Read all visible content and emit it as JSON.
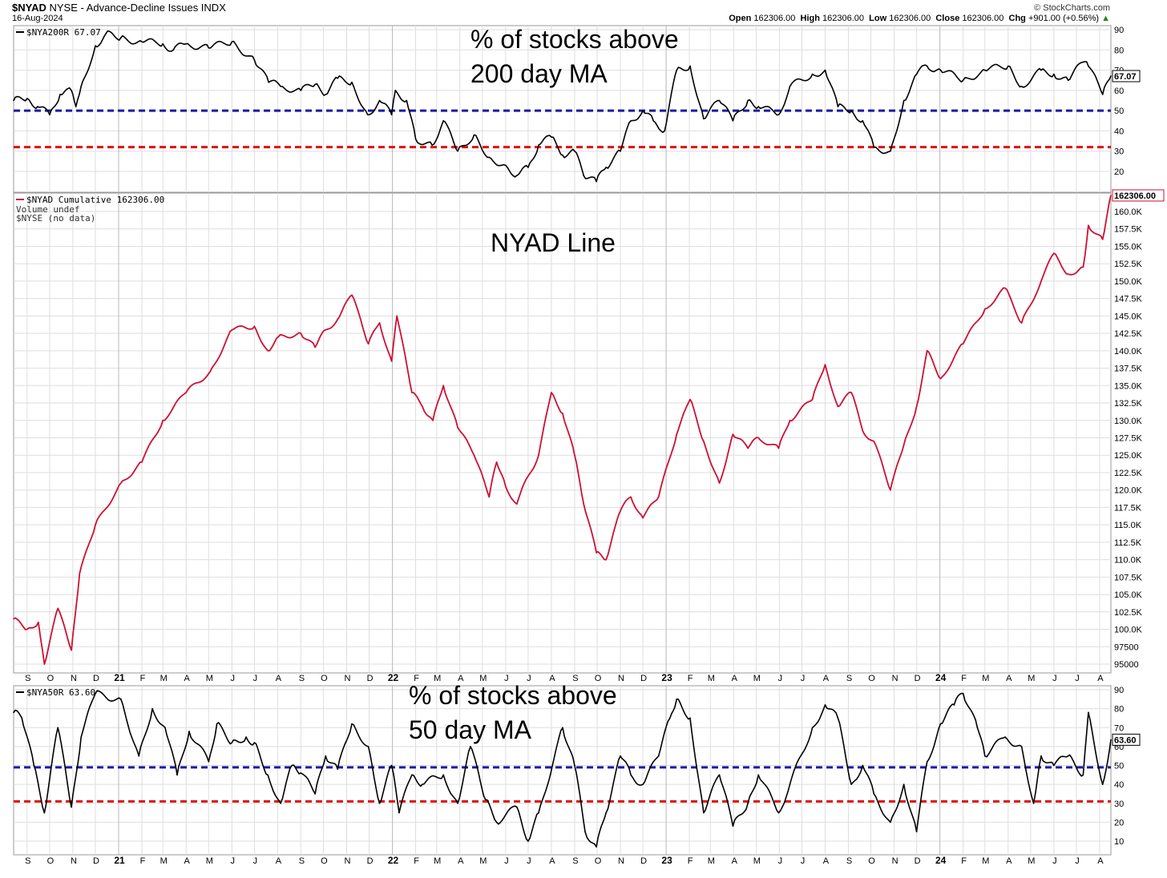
{
  "header": {
    "symbol": "$NYAD",
    "description": "NYSE - Advance-Decline Issues INDX",
    "date": "16-Aug-2024",
    "source": "© StockCharts.com",
    "ohlc": [
      {
        "label": "Open",
        "value": "162306.00"
      },
      {
        "label": "High",
        "value": "162306.00"
      },
      {
        "label": "Low",
        "value": "162306.00"
      },
      {
        "label": "Close",
        "value": "162306.00"
      },
      {
        "label": "Chg",
        "value": "+901.00 (+0.56%)"
      }
    ],
    "chg_arrow": "▲"
  },
  "colors": {
    "black_line": "#000000",
    "red_line": "#cc1133",
    "blue_dash": "#1a1aa6",
    "red_dash": "#e01010",
    "grid": "#dedede"
  },
  "x_tick_labels": [
    "S",
    "O",
    "N",
    "D",
    "21",
    "F",
    "M",
    "A",
    "M",
    "J",
    "J",
    "A",
    "S",
    "O",
    "N",
    "D",
    "22",
    "F",
    "M",
    "A",
    "M",
    "J",
    "J",
    "A",
    "S",
    "O",
    "N",
    "D",
    "23",
    "F",
    "M",
    "A",
    "M",
    "J",
    "J",
    "A",
    "S",
    "O",
    "N",
    "D",
    "24",
    "F",
    "M",
    "A",
    "M",
    "J",
    "J",
    "A"
  ],
  "chart_data": [
    {
      "type": "line",
      "id": "top",
      "legend": "$NYA200R 67.07",
      "annotation_lines": [
        "% of stocks above",
        "200 day MA"
      ],
      "last_value_label": "67.07",
      "y_ticks": [
        "20",
        "30",
        "40",
        "50",
        "60",
        "70",
        "80",
        "90"
      ],
      "ylim": [
        12,
        92
      ],
      "reference_lines": [
        {
          "value": 50,
          "color": "blue"
        },
        {
          "value": 32,
          "color": "red"
        }
      ],
      "x": [
        "2020-08-14",
        "2020-09-01",
        "2020-09-15",
        "2020-10-01",
        "2020-10-15",
        "2020-10-30",
        "2020-11-05",
        "2020-11-12",
        "2020-12-01",
        "2020-12-15",
        "2021-01-04",
        "2021-02-01",
        "2021-03-01",
        "2021-03-15",
        "2021-04-01",
        "2021-05-01",
        "2021-06-01",
        "2021-07-01",
        "2021-07-20",
        "2021-08-05",
        "2021-09-01",
        "2021-09-20",
        "2021-10-04",
        "2021-10-20",
        "2021-11-08",
        "2021-11-29",
        "2021-12-15",
        "2021-12-31",
        "2022-01-05",
        "2022-01-20",
        "2022-02-01",
        "2022-02-23",
        "2022-03-10",
        "2022-03-29",
        "2022-04-20",
        "2022-05-10",
        "2022-06-01",
        "2022-06-16",
        "2022-07-01",
        "2022-07-15",
        "2022-08-01",
        "2022-08-16",
        "2022-09-01",
        "2022-09-13",
        "2022-09-30",
        "2022-10-13",
        "2022-11-01",
        "2022-11-15",
        "2022-12-01",
        "2022-12-15",
        "2022-12-30",
        "2023-01-15",
        "2023-02-02",
        "2023-02-20",
        "2023-03-13",
        "2023-03-31",
        "2023-04-20",
        "2023-05-04",
        "2023-05-31",
        "2023-06-15",
        "2023-07-15",
        "2023-08-01",
        "2023-08-18",
        "2023-09-05",
        "2023-09-20",
        "2023-10-05",
        "2023-10-27",
        "2023-11-14",
        "2023-12-01",
        "2023-12-15",
        "2024-01-02",
        "2024-02-01",
        "2024-03-01",
        "2024-04-01",
        "2024-04-19",
        "2024-05-15",
        "2024-06-01",
        "2024-06-20",
        "2024-07-10",
        "2024-07-17",
        "2024-08-05",
        "2024-08-16"
      ],
      "values": [
        55,
        56,
        52,
        48,
        58,
        60,
        52,
        62,
        82,
        88,
        86,
        84,
        83,
        80,
        83,
        81,
        84,
        75,
        64,
        62,
        60,
        63,
        58,
        66,
        64,
        48,
        55,
        48,
        60,
        55,
        36,
        33,
        45,
        30,
        38,
        27,
        23,
        18,
        22,
        33,
        37,
        28,
        30,
        18,
        15,
        22,
        30,
        45,
        50,
        45,
        40,
        70,
        72,
        46,
        55,
        45,
        55,
        52,
        48,
        62,
        68,
        70,
        52,
        50,
        45,
        32,
        30,
        55,
        68,
        72,
        70,
        65,
        70,
        72,
        62,
        70,
        68,
        65,
        74,
        72,
        58,
        67.07
      ]
    },
    {
      "type": "line",
      "id": "middle",
      "legend": "$NYAD Cumulative 162306.00",
      "legend_lines": [
        "Volume undef",
        "$NYSE (no data)"
      ],
      "annotation": "NYAD Line",
      "last_value_label": "162306.00",
      "y_ticks": [
        "95000",
        "97500",
        "100.0K",
        "102.5K",
        "105.0K",
        "107.5K",
        "110.0K",
        "112.5K",
        "115.0K",
        "117.5K",
        "120.0K",
        "122.5K",
        "125.0K",
        "127.5K",
        "130.0K",
        "132.5K",
        "135.0K",
        "137.5K",
        "140.0K",
        "142.5K",
        "145.0K",
        "147.5K",
        "150.0K",
        "152.5K",
        "155.0K",
        "157.5K",
        "160.0K"
      ],
      "ylim": [
        94500,
        163200
      ],
      "x": [
        "2020-08-14",
        "2020-09-01",
        "2020-09-16",
        "2020-09-24",
        "2020-10-12",
        "2020-10-30",
        "2020-11-10",
        "2020-12-01",
        "2021-01-04",
        "2021-02-01",
        "2021-03-01",
        "2021-04-01",
        "2021-05-03",
        "2021-06-01",
        "2021-07-01",
        "2021-07-19",
        "2021-08-02",
        "2021-09-01",
        "2021-09-20",
        "2021-10-04",
        "2021-10-20",
        "2021-11-08",
        "2021-11-30",
        "2021-12-15",
        "2021-12-31",
        "2022-01-07",
        "2022-01-27",
        "2022-02-10",
        "2022-02-24",
        "2022-03-10",
        "2022-03-29",
        "2022-04-20",
        "2022-05-10",
        "2022-05-20",
        "2022-06-01",
        "2022-06-16",
        "2022-07-01",
        "2022-07-15",
        "2022-08-01",
        "2022-08-16",
        "2022-09-01",
        "2022-09-13",
        "2022-09-30",
        "2022-10-13",
        "2022-11-01",
        "2022-11-15",
        "2022-12-01",
        "2022-12-22",
        "2023-01-15",
        "2023-02-02",
        "2023-02-20",
        "2023-03-13",
        "2023-03-31",
        "2023-04-20",
        "2023-05-04",
        "2023-05-31",
        "2023-06-15",
        "2023-07-15",
        "2023-08-01",
        "2023-08-18",
        "2023-09-05",
        "2023-09-20",
        "2023-10-05",
        "2023-10-27",
        "2023-11-14",
        "2023-12-01",
        "2023-12-15",
        "2024-01-02",
        "2024-02-01",
        "2024-03-01",
        "2024-03-28",
        "2024-04-19",
        "2024-05-15",
        "2024-06-01",
        "2024-06-20",
        "2024-07-10",
        "2024-07-17",
        "2024-08-05",
        "2024-08-16"
      ],
      "values": [
        101500,
        100000,
        101000,
        95000,
        103000,
        97000,
        108000,
        115000,
        121000,
        124000,
        130000,
        134000,
        137000,
        143000,
        143500,
        140000,
        142000,
        142500,
        140500,
        143000,
        144500,
        148000,
        141000,
        144000,
        138500,
        145000,
        134000,
        132000,
        130000,
        135000,
        129000,
        125000,
        119000,
        124000,
        120500,
        118000,
        122000,
        125000,
        134000,
        131000,
        125000,
        118000,
        111000,
        110000,
        117000,
        119000,
        116000,
        119000,
        128000,
        133000,
        127000,
        121000,
        128000,
        126000,
        127500,
        126000,
        130000,
        133000,
        138000,
        132000,
        134000,
        128500,
        127000,
        120000,
        126500,
        132000,
        140000,
        136000,
        141000,
        146000,
        149000,
        144000,
        150000,
        154000,
        151000,
        152000,
        158000,
        156000,
        162306
      ]
    },
    {
      "type": "line",
      "id": "bottom",
      "legend": "$NYA50R 63.60",
      "annotation_lines": [
        "% of stocks above",
        "50 day MA"
      ],
      "last_value_label": "63.60",
      "y_ticks": [
        "10",
        "20",
        "30",
        "40",
        "50",
        "60",
        "70",
        "80",
        "90"
      ],
      "ylim": [
        3,
        94
      ],
      "reference_lines": [
        {
          "value": 49,
          "color": "blue"
        },
        {
          "value": 31,
          "color": "red"
        }
      ],
      "x": [
        "2020-08-14",
        "2020-08-25",
        "2020-09-10",
        "2020-09-24",
        "2020-10-12",
        "2020-10-30",
        "2020-11-12",
        "2020-12-01",
        "2021-01-04",
        "2021-01-28",
        "2021-02-15",
        "2021-03-04",
        "2021-03-20",
        "2021-04-05",
        "2021-05-01",
        "2021-05-12",
        "2021-06-01",
        "2021-06-20",
        "2021-07-01",
        "2021-07-19",
        "2021-08-05",
        "2021-08-20",
        "2021-09-01",
        "2021-09-20",
        "2021-10-04",
        "2021-10-20",
        "2021-11-08",
        "2021-11-30",
        "2021-12-15",
        "2021-12-31",
        "2022-01-10",
        "2022-01-27",
        "2022-02-10",
        "2022-03-10",
        "2022-03-29",
        "2022-04-15",
        "2022-05-05",
        "2022-05-20",
        "2022-06-16",
        "2022-07-01",
        "2022-07-15",
        "2022-08-16",
        "2022-09-01",
        "2022-09-15",
        "2022-09-30",
        "2022-10-13",
        "2022-11-01",
        "2022-11-15",
        "2022-12-01",
        "2022-12-22",
        "2023-01-06",
        "2023-01-15",
        "2023-02-02",
        "2023-02-20",
        "2023-03-13",
        "2023-03-31",
        "2023-04-20",
        "2023-05-04",
        "2023-05-31",
        "2023-06-15",
        "2023-07-15",
        "2023-08-01",
        "2023-08-18",
        "2023-09-05",
        "2023-09-20",
        "2023-10-05",
        "2023-10-27",
        "2023-11-14",
        "2023-12-01",
        "2023-12-15",
        "2024-01-02",
        "2024-01-20",
        "2024-02-01",
        "2024-02-20",
        "2024-03-01",
        "2024-03-28",
        "2024-04-19",
        "2024-05-05",
        "2024-05-15",
        "2024-06-01",
        "2024-06-20",
        "2024-07-10",
        "2024-07-17",
        "2024-08-05",
        "2024-08-16"
      ],
      "values": [
        78,
        75,
        50,
        25,
        70,
        28,
        65,
        88,
        85,
        55,
        80,
        70,
        45,
        68,
        52,
        72,
        62,
        65,
        62,
        45,
        30,
        50,
        46,
        35,
        55,
        48,
        72,
        60,
        30,
        50,
        25,
        45,
        40,
        45,
        30,
        60,
        32,
        20,
        28,
        10,
        25,
        70,
        50,
        15,
        7,
        25,
        55,
        45,
        40,
        55,
        75,
        85,
        75,
        25,
        45,
        18,
        30,
        45,
        25,
        40,
        70,
        82,
        75,
        40,
        50,
        35,
        20,
        40,
        15,
        52,
        72,
        82,
        88,
        70,
        55,
        65,
        60,
        30,
        55,
        50,
        55,
        45,
        78,
        40,
        63.6
      ]
    }
  ]
}
